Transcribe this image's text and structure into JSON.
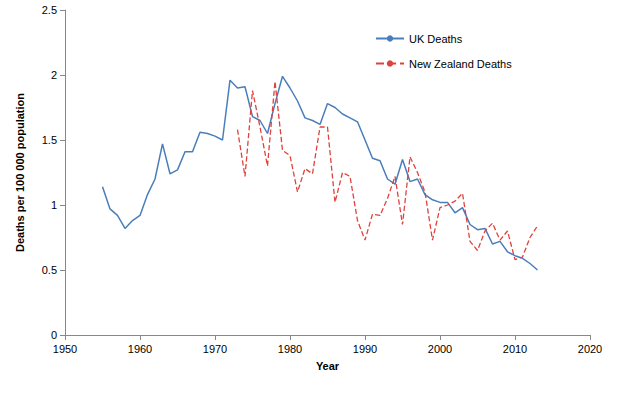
{
  "chart_data": {
    "type": "line",
    "x_label": "Year",
    "y_label": "Deaths per 100 000 population",
    "x": [
      1955,
      1956,
      1957,
      1958,
      1959,
      1960,
      1961,
      1962,
      1963,
      1964,
      1965,
      1966,
      1967,
      1968,
      1969,
      1970,
      1971,
      1972,
      1973,
      1974,
      1975,
      1976,
      1977,
      1978,
      1979,
      1980,
      1981,
      1982,
      1983,
      1984,
      1985,
      1986,
      1987,
      1988,
      1989,
      1990,
      1991,
      1992,
      1993,
      1994,
      1995,
      1996,
      1997,
      1998,
      1999,
      2000,
      2001,
      2002,
      2003,
      2004,
      2005,
      2006,
      2007,
      2008,
      2009,
      2010,
      2011,
      2012,
      2013
    ],
    "series": [
      {
        "name": "UK Deaths",
        "color": "#4a7ebb",
        "line_style": "solid",
        "values": [
          1.14,
          0.97,
          0.92,
          0.82,
          0.88,
          0.92,
          1.08,
          1.2,
          1.47,
          1.24,
          1.27,
          1.41,
          1.41,
          1.56,
          1.55,
          1.53,
          1.5,
          1.96,
          1.9,
          1.91,
          1.68,
          1.65,
          1.55,
          1.78,
          1.99,
          1.9,
          1.8,
          1.67,
          1.65,
          1.62,
          1.78,
          1.75,
          1.7,
          1.67,
          1.64,
          1.5,
          1.36,
          1.34,
          1.2,
          1.16,
          1.35,
          1.18,
          1.2,
          1.08,
          1.04,
          1.02,
          1.02,
          0.94,
          0.98,
          0.85,
          0.81,
          0.82,
          0.7,
          0.72,
          0.64,
          0.61,
          0.59,
          0.55,
          0.5
        ]
      },
      {
        "name": "New Zealand Deaths",
        "color": "#e0413c",
        "line_style": "dashed",
        "values": [
          null,
          null,
          null,
          null,
          null,
          null,
          null,
          null,
          null,
          null,
          null,
          null,
          null,
          null,
          null,
          null,
          null,
          null,
          1.58,
          1.22,
          1.88,
          1.6,
          1.3,
          1.95,
          1.42,
          1.38,
          1.1,
          1.28,
          1.24,
          1.6,
          1.6,
          1.02,
          1.25,
          1.22,
          0.88,
          0.73,
          0.93,
          0.92,
          1.05,
          1.22,
          0.85,
          1.37,
          1.25,
          1.1,
          0.73,
          0.98,
          1.0,
          1.03,
          1.09,
          0.72,
          0.65,
          0.8,
          0.86,
          0.73,
          0.8,
          0.58,
          0.6,
          0.75,
          0.84
        ]
      }
    ],
    "xlim": [
      1950,
      2020
    ],
    "xticks": [
      1950,
      1960,
      1970,
      1980,
      1990,
      2000,
      2010,
      2020
    ],
    "ylim": [
      0,
      2.5
    ],
    "yticks": [
      0,
      0.5,
      1,
      1.5,
      2,
      2.5
    ],
    "grid": false,
    "legend": "upper right"
  }
}
